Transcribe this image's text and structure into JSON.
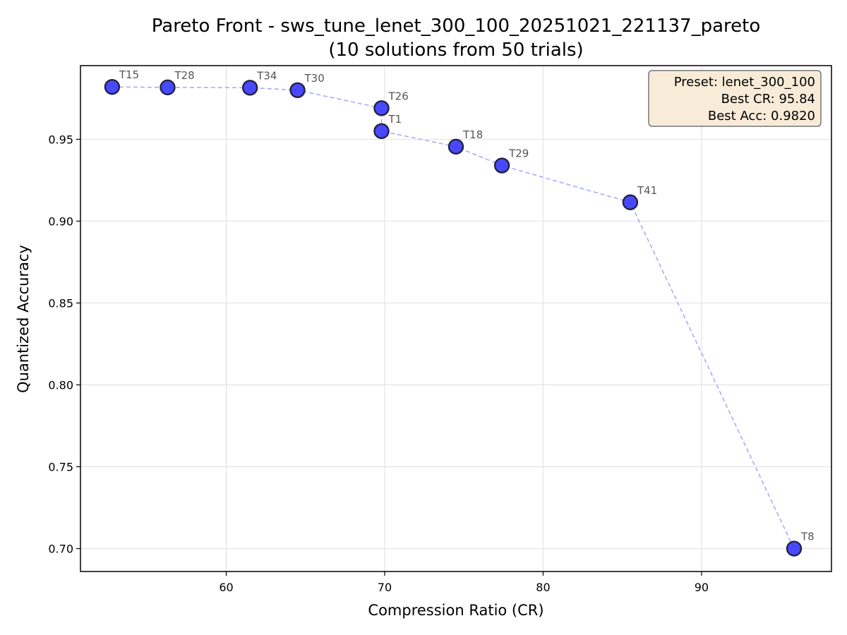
{
  "chart_data": {
    "type": "scatter",
    "title": "Pareto Front - sws_tune_lenet_300_100_20251021_221137_pareto",
    "subtitle": "(10 solutions from 50 trials)",
    "xlabel": "Compression Ratio (CR)",
    "ylabel": "Quantized Accuracy",
    "xlim": [
      50.8,
      98.2
    ],
    "ylim": [
      0.686,
      0.995
    ],
    "xticks": [
      60,
      70,
      80,
      90
    ],
    "yticks": [
      0.7,
      0.75,
      0.8,
      0.85,
      0.9,
      0.95
    ],
    "xtick_labels": [
      "60",
      "70",
      "80",
      "90"
    ],
    "ytick_labels": [
      "0.70",
      "0.75",
      "0.80",
      "0.85",
      "0.90",
      "0.95"
    ],
    "grid": true,
    "marker_color": "#3a3aff",
    "marker_edge_color": "#222244",
    "line_color": "#a9a9ff",
    "points": [
      {
        "label": "T15",
        "x": 52.8,
        "y": 0.982
      },
      {
        "label": "T28",
        "x": 56.3,
        "y": 0.9817
      },
      {
        "label": "T34",
        "x": 61.5,
        "y": 0.9815
      },
      {
        "label": "T30",
        "x": 64.5,
        "y": 0.98
      },
      {
        "label": "T26",
        "x": 69.8,
        "y": 0.969
      },
      {
        "label": "T1",
        "x": 69.8,
        "y": 0.955
      },
      {
        "label": "T18",
        "x": 74.5,
        "y": 0.9455
      },
      {
        "label": "T29",
        "x": 77.4,
        "y": 0.934
      },
      {
        "label": "T41",
        "x": 85.5,
        "y": 0.9115
      },
      {
        "label": "T8",
        "x": 95.84,
        "y": 0.7
      }
    ],
    "info_box": {
      "lines": [
        "Preset: lenet_300_100",
        "Best CR: 95.84",
        "Best Acc: 0.9820"
      ],
      "background": "#f8ecd8",
      "border": "#777777",
      "placement": "top-right"
    }
  }
}
